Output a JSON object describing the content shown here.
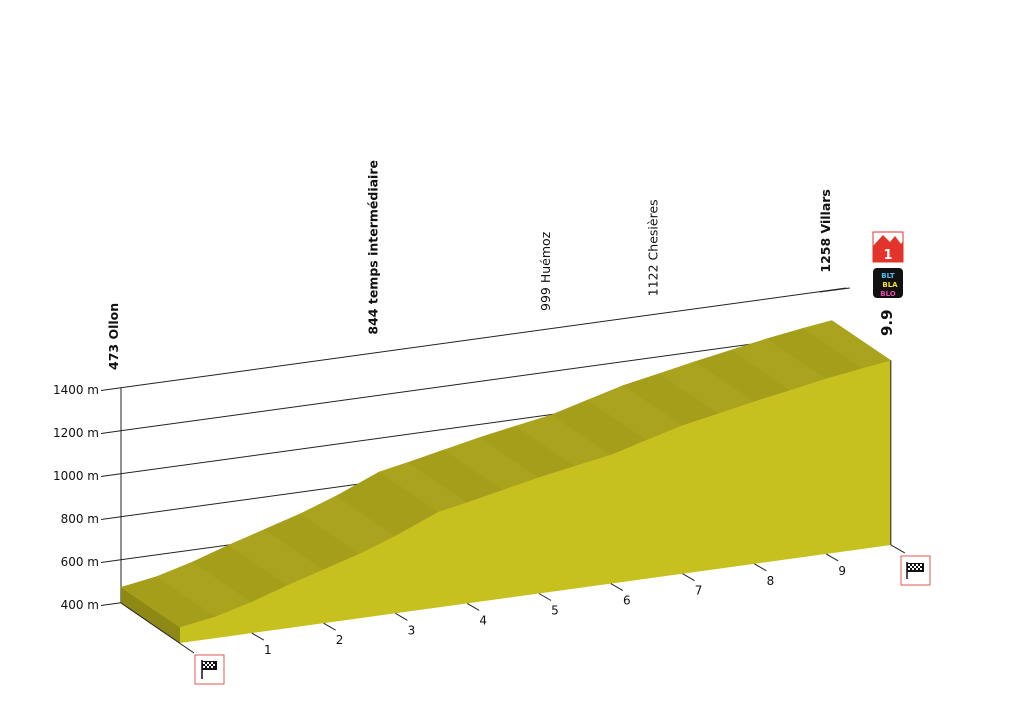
{
  "chart_data": {
    "type": "area",
    "title": "",
    "xlabel": "",
    "ylabel": "",
    "ylim": [
      400,
      1400
    ],
    "xlim": [
      0,
      9.9
    ],
    "y_ticks": [
      400,
      600,
      800,
      1000,
      1200,
      1400
    ],
    "y_tick_unit": "m",
    "x_ticks": [
      1,
      2,
      3,
      4,
      5,
      6,
      7,
      8,
      9
    ],
    "profile": {
      "km": [
        0,
        0.5,
        1,
        1.5,
        2,
        2.5,
        3,
        3.6,
        4,
        4.5,
        5,
        5.5,
        6,
        6.5,
        7,
        7.5,
        8,
        8.5,
        9,
        9.5,
        9.9
      ],
      "elevation": [
        473,
        500,
        545,
        600,
        650,
        700,
        760,
        844,
        870,
        905,
        940,
        970,
        999,
        1045,
        1090,
        1122,
        1155,
        1185,
        1215,
        1240,
        1258
      ]
    },
    "waypoints": [
      {
        "km": 0,
        "label": "473 Ollon",
        "bold": true
      },
      {
        "km": 3.6,
        "label": "844 temps intermédiaire",
        "bold": true
      },
      {
        "km": 6.0,
        "label": "999 Huémoz",
        "bold": false
      },
      {
        "km": 7.5,
        "label": "1122 Chesières",
        "bold": false
      },
      {
        "km": 9.9,
        "label": "1258 Villars",
        "bold": true
      }
    ],
    "total_distance_label": "9.9",
    "colors": {
      "top": "#a9a31d",
      "front": "#c6c11f",
      "side": "#8e8915",
      "accent": "#e03a2f"
    }
  },
  "badges": {
    "mountain_category": "1",
    "sponsor_logo_lines": [
      "BLT",
      "BLA",
      "BLO"
    ]
  },
  "icons": {
    "start": "checkered-flag-icon",
    "finish": "checkered-flag-icon"
  }
}
